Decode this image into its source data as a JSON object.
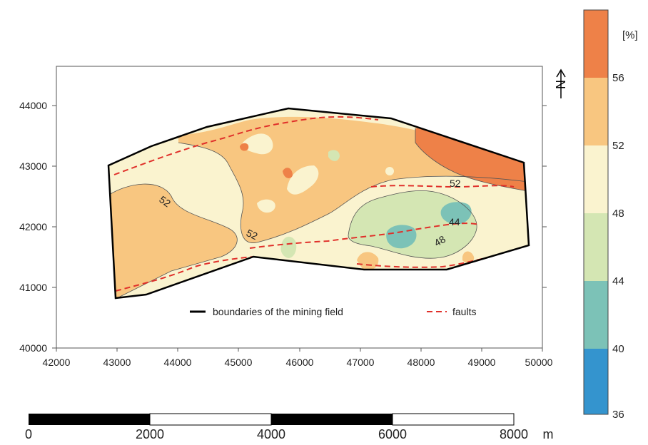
{
  "map": {
    "x_ticks": [
      "42000",
      "43000",
      "44000",
      "45000",
      "46000",
      "47000",
      "48000",
      "49000",
      "50000"
    ],
    "y_ticks": [
      "40000",
      "41000",
      "42000",
      "43000",
      "44000"
    ],
    "north_label": "N",
    "contour_labels": [
      "52",
      "52",
      "52",
      "48",
      "44"
    ],
    "legend": {
      "boundary_label": "boundaries of the mining field",
      "faults_label": "faults"
    },
    "colors": {
      "boundary": "#000000",
      "faults": "#e0302a"
    }
  },
  "colorbar": {
    "unit": "[%]",
    "ticks": [
      "56",
      "52",
      "48",
      "44",
      "40",
      "36"
    ],
    "bins": [
      {
        "range": "56+",
        "color": "#ee8148"
      },
      {
        "range": "52-56",
        "color": "#f8c680"
      },
      {
        "range": "48-52",
        "color": "#faf3cf"
      },
      {
        "range": "44-48",
        "color": "#d4e6b3"
      },
      {
        "range": "40-44",
        "color": "#7cc2b7"
      },
      {
        "range": "36-40",
        "color": "#3494ce"
      }
    ]
  },
  "scalebar": {
    "labels": [
      "0",
      "2000",
      "4000",
      "6000",
      "8000"
    ],
    "unit": "m"
  }
}
